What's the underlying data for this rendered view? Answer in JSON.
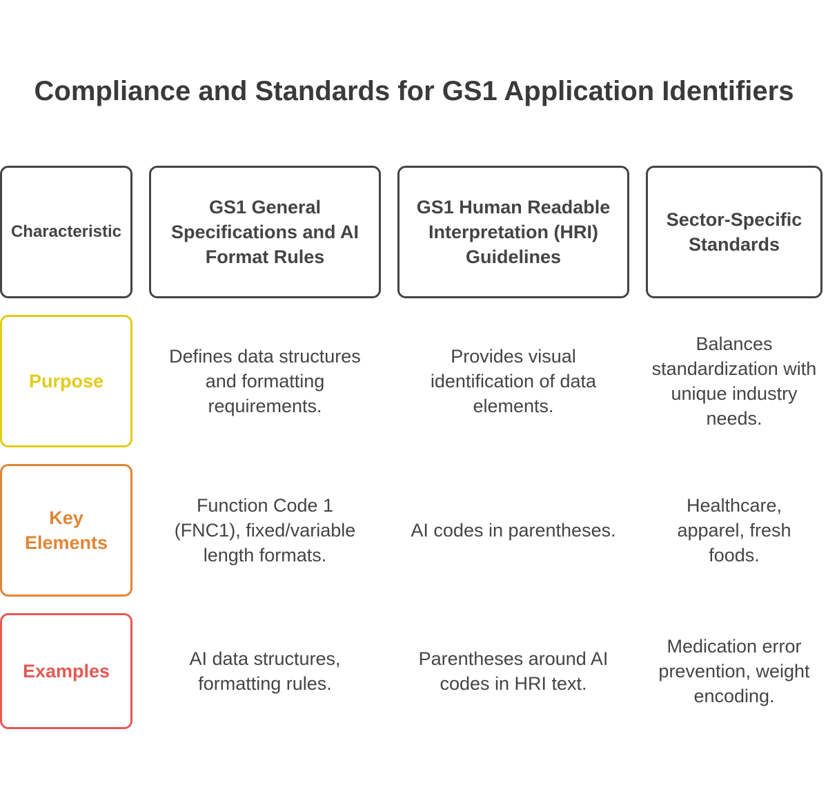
{
  "title": "Compliance and Standards for GS1 Application Identifiers",
  "headers": [
    "Characteristic",
    "GS1 General Specifications and AI Format Rules",
    "GS1 Human Readable Interpretation (HRI) Guidelines",
    "Sector-Specific Standards"
  ],
  "rows": [
    {
      "label": "Purpose",
      "color": "#e3cb18",
      "cells": [
        "Defines data structures and formatting requirements.",
        "Provides visual identification of data elements.",
        "Balances standardization with unique industry needs."
      ]
    },
    {
      "label": "Key Elements",
      "color": "#e08535",
      "cells": [
        "Function Code 1 (FNC1), fixed/variable length formats.",
        "AI codes in parentheses.",
        "Healthcare, apparel, fresh foods."
      ]
    },
    {
      "label": "Examples",
      "color": "#e35a55",
      "cells": [
        "AI data structures, formatting rules.",
        "Parentheses around AI codes in HRI text.",
        "Medication error prevention, weight encoding."
      ]
    }
  ]
}
